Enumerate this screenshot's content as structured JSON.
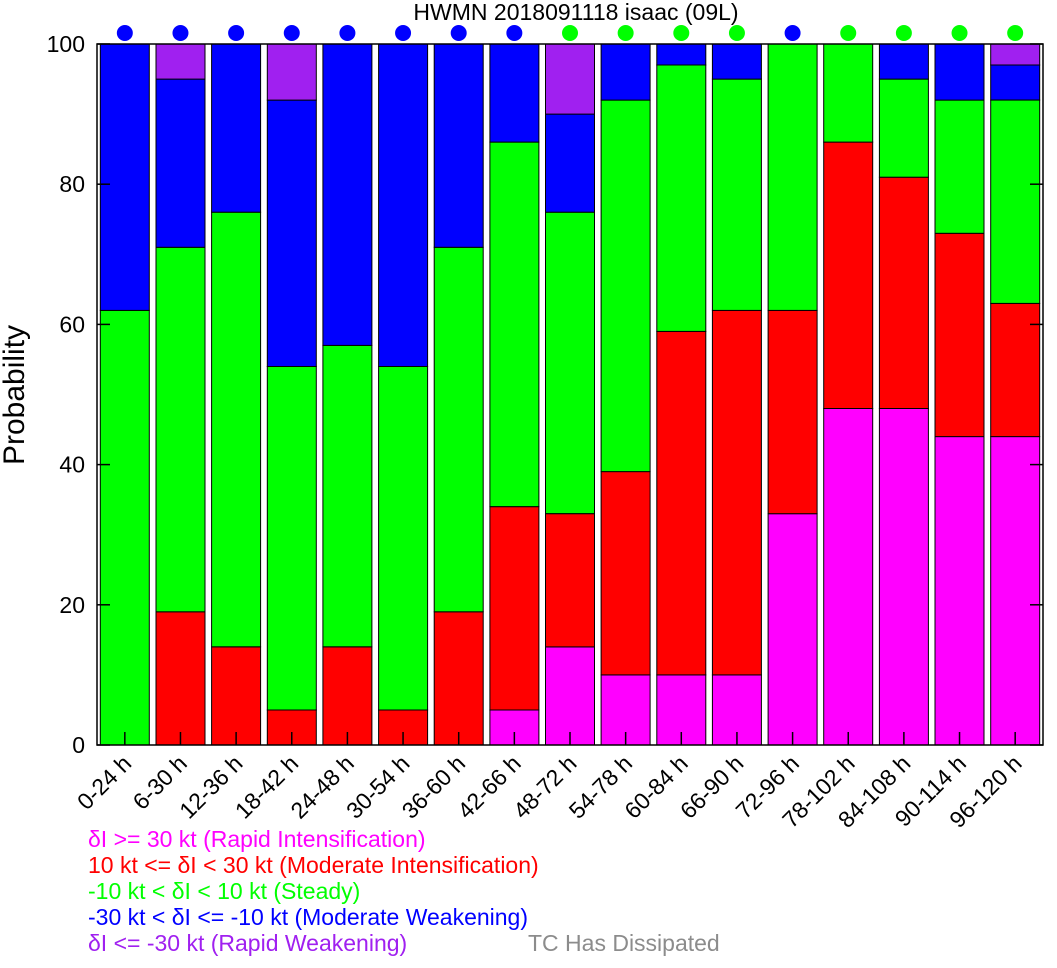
{
  "chart_data": {
    "type": "bar",
    "stacked": true,
    "title": "HWMN 2018091118 isaac (09L)",
    "ylabel": "Probability",
    "xlabel": "",
    "ylim": [
      0,
      100
    ],
    "yticks": [
      0,
      20,
      40,
      60,
      80,
      100
    ],
    "categories": [
      "0-24 h",
      "6-30 h",
      "12-36 h",
      "18-42 h",
      "24-48 h",
      "30-54 h",
      "36-60 h",
      "42-66 h",
      "48-72 h",
      "54-78 h",
      "60-84 h",
      "66-90 h",
      "72-96 h",
      "78-102 h",
      "84-108 h",
      "90-114 h",
      "96-120 h"
    ],
    "series": [
      {
        "key": "ri",
        "color": "#ff00ff",
        "values": [
          0,
          0,
          0,
          0,
          0,
          0,
          0,
          5,
          14,
          10,
          10,
          10,
          33,
          48,
          48,
          44,
          44
        ]
      },
      {
        "key": "mi",
        "color": "#ff0000",
        "values": [
          0,
          19,
          14,
          5,
          14,
          5,
          19,
          29,
          19,
          29,
          49,
          52,
          29,
          38,
          33,
          29,
          19
        ]
      },
      {
        "key": "st",
        "color": "#00ff00",
        "values": [
          62,
          52,
          62,
          49,
          43,
          49,
          52,
          52,
          43,
          53,
          38,
          33,
          38,
          14,
          14,
          19,
          29
        ]
      },
      {
        "key": "mw",
        "color": "#0000ff",
        "values": [
          38,
          24,
          24,
          38,
          43,
          46,
          29,
          14,
          14,
          8,
          3,
          5,
          0,
          0,
          5,
          8,
          5
        ]
      },
      {
        "key": "rw",
        "color": "#a020f0",
        "values": [
          0,
          5,
          0,
          8,
          0,
          0,
          0,
          0,
          10,
          0,
          0,
          0,
          0,
          0,
          0,
          0,
          3
        ]
      }
    ],
    "dots": [
      "#0000ff",
      "#0000ff",
      "#0000ff",
      "#0000ff",
      "#0000ff",
      "#0000ff",
      "#0000ff",
      "#0000ff",
      "#00ff00",
      "#00ff00",
      "#00ff00",
      "#00ff00",
      "#0000ff",
      "#00ff00",
      "#00ff00",
      "#00ff00",
      "#00ff00"
    ],
    "legend": [
      {
        "text": "δI >= 30 kt (Rapid Intensification)",
        "color": "#ff00ff"
      },
      {
        "text": "10 kt <= δI < 30 kt (Moderate Intensification)",
        "color": "#ff0000"
      },
      {
        "text": "-10 kt < δI < 10 kt (Steady)",
        "color": "#00ff00"
      },
      {
        "text": "-30 kt < δI <= -10 kt (Moderate Weakening)",
        "color": "#0000ff"
      },
      {
        "text": "δI <= -30 kt (Rapid Weakening)",
        "color": "#a020f0"
      }
    ],
    "dissipated_label": "TC Has Dissipated",
    "dissipated_color": "#8c8c8c"
  }
}
